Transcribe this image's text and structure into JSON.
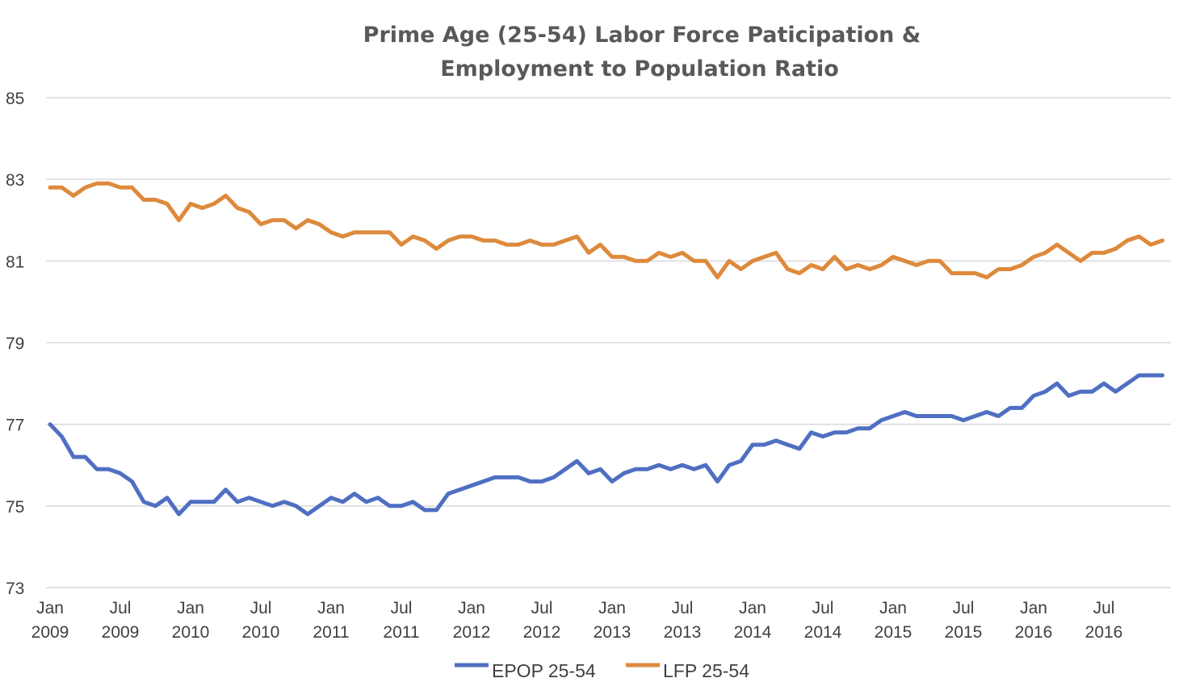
{
  "chart_data": {
    "type": "line",
    "title": [
      "Prime Age (25-54) Labor Force Paticipation &",
      "Employment to Population Ratio"
    ],
    "ylim": [
      73,
      85
    ],
    "yticks": [
      73,
      75,
      77,
      79,
      81,
      83,
      85
    ],
    "grid": true,
    "legend_position": "bottom",
    "x_start": "2009-01",
    "x_end": "2016-12",
    "x_tick_labels": [
      {
        "month": "Jan",
        "year": "2009"
      },
      {
        "month": "Jul",
        "year": "2009"
      },
      {
        "month": "Jan",
        "year": "2010"
      },
      {
        "month": "Jul",
        "year": "2010"
      },
      {
        "month": "Jan",
        "year": "2011"
      },
      {
        "month": "Jul",
        "year": "2011"
      },
      {
        "month": "Jan",
        "year": "2012"
      },
      {
        "month": "Jul",
        "year": "2012"
      },
      {
        "month": "Jan",
        "year": "2013"
      },
      {
        "month": "Jul",
        "year": "2013"
      },
      {
        "month": "Jan",
        "year": "2014"
      },
      {
        "month": "Jul",
        "year": "2014"
      },
      {
        "month": "Jan",
        "year": "2015"
      },
      {
        "month": "Jul",
        "year": "2015"
      },
      {
        "month": "Jan",
        "year": "2016"
      },
      {
        "month": "Jul",
        "year": "2016"
      }
    ],
    "series": [
      {
        "name": "EPOP 25-54",
        "color": "#4f6fc2",
        "values": [
          77.0,
          76.7,
          76.2,
          76.2,
          75.9,
          75.9,
          75.8,
          75.6,
          75.1,
          75.0,
          75.2,
          74.8,
          75.1,
          75.1,
          75.1,
          75.4,
          75.1,
          75.2,
          75.1,
          75.0,
          75.1,
          75.0,
          74.8,
          75.0,
          75.2,
          75.1,
          75.3,
          75.1,
          75.2,
          75.0,
          75.0,
          75.1,
          74.9,
          74.9,
          75.3,
          75.4,
          75.5,
          75.6,
          75.7,
          75.7,
          75.7,
          75.6,
          75.6,
          75.7,
          75.9,
          76.1,
          75.8,
          75.9,
          75.6,
          75.8,
          75.9,
          75.9,
          76.0,
          75.9,
          76.0,
          75.9,
          76.0,
          75.6,
          76.0,
          76.1,
          76.5,
          76.5,
          76.6,
          76.5,
          76.4,
          76.8,
          76.7,
          76.8,
          76.8,
          76.9,
          76.9,
          77.1,
          77.2,
          77.3,
          77.2,
          77.2,
          77.2,
          77.2,
          77.1,
          77.2,
          77.3,
          77.2,
          77.4,
          77.4,
          77.7,
          77.8,
          78.0,
          77.7,
          77.8,
          77.8,
          78.0,
          77.8,
          78.0,
          78.2,
          78.2,
          78.2
        ]
      },
      {
        "name": "LFP 25-54",
        "color": "#dd8a3c",
        "values": [
          82.8,
          82.8,
          82.6,
          82.8,
          82.9,
          82.9,
          82.8,
          82.8,
          82.5,
          82.5,
          82.4,
          82.0,
          82.4,
          82.3,
          82.4,
          82.6,
          82.3,
          82.2,
          81.9,
          82.0,
          82.0,
          81.8,
          82.0,
          81.9,
          81.7,
          81.6,
          81.7,
          81.7,
          81.7,
          81.7,
          81.4,
          81.6,
          81.5,
          81.3,
          81.5,
          81.6,
          81.6,
          81.5,
          81.5,
          81.4,
          81.4,
          81.5,
          81.4,
          81.4,
          81.5,
          81.6,
          81.2,
          81.4,
          81.1,
          81.1,
          81.0,
          81.0,
          81.2,
          81.1,
          81.2,
          81.0,
          81.0,
          80.6,
          81.0,
          80.8,
          81.0,
          81.1,
          81.2,
          80.8,
          80.7,
          80.9,
          80.8,
          81.1,
          80.8,
          80.9,
          80.8,
          80.9,
          81.1,
          81.0,
          80.9,
          81.0,
          81.0,
          80.7,
          80.7,
          80.7,
          80.6,
          80.8,
          80.8,
          80.9,
          81.1,
          81.2,
          81.4,
          81.2,
          81.0,
          81.2,
          81.2,
          81.3,
          81.5,
          81.6,
          81.4,
          81.5
        ]
      }
    ]
  }
}
